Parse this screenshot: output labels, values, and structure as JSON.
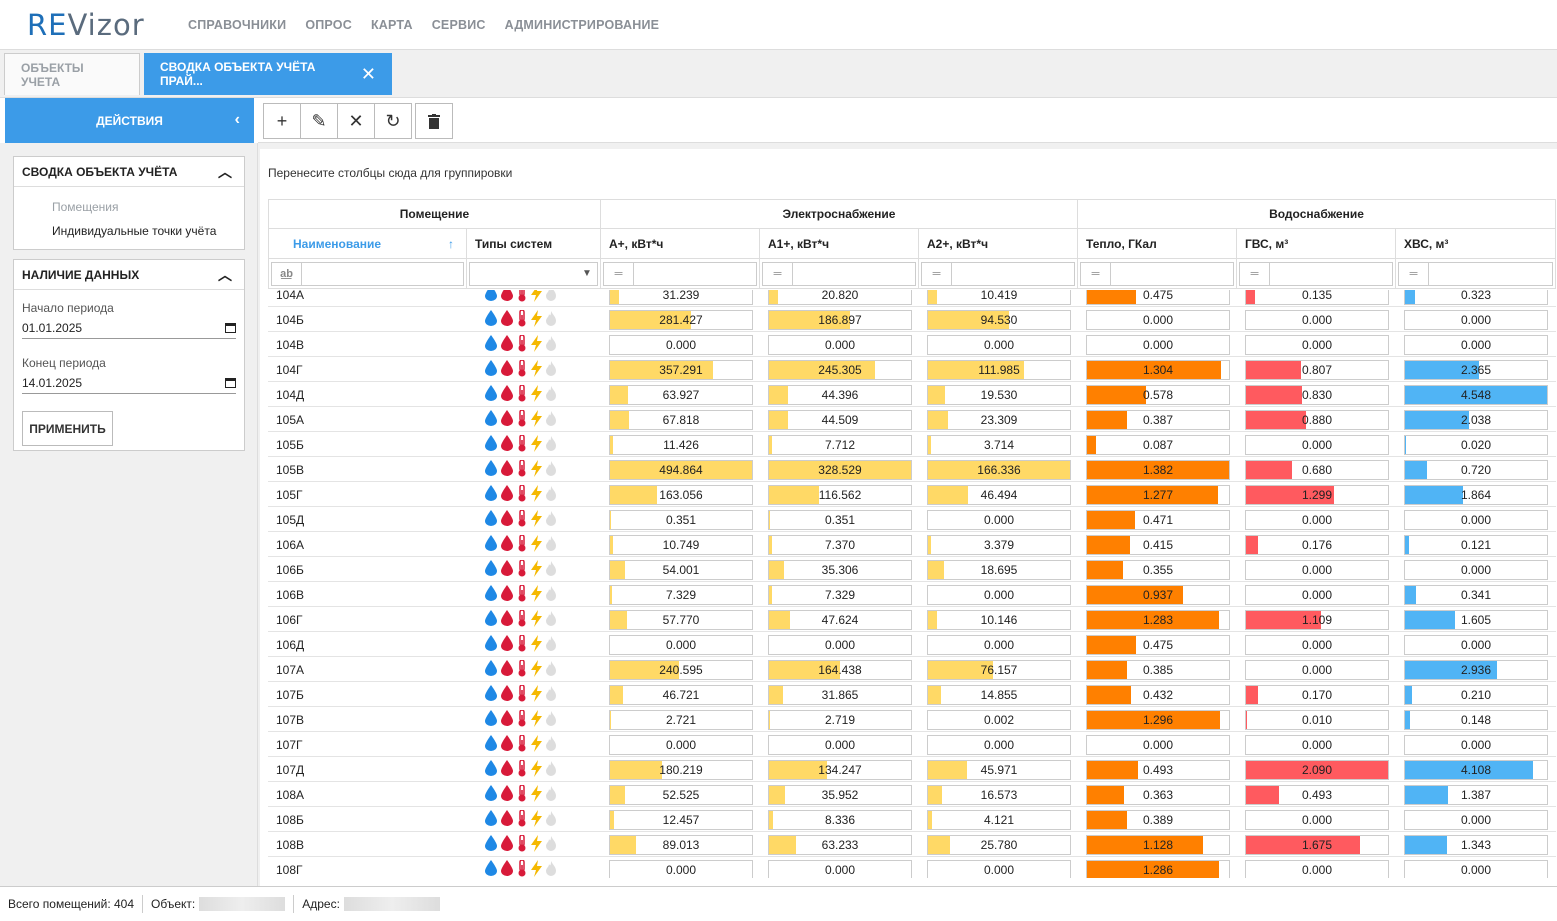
{
  "app": {
    "logo_re": "RE",
    "logo_vz": "Vizor"
  },
  "menu": [
    "СПРАВОЧНИКИ",
    "ОПРОС",
    "КАРТА",
    "СЕРВИС",
    "АДМИНИСТРИРОВАНИЕ"
  ],
  "tabs": {
    "tab1": "ОБЪЕКТЫ УЧЕТА",
    "tab2": "СВОДКА ОБЪЕКТА УЧЁТА ПРАЙ...",
    "close": "✕"
  },
  "left": {
    "actions": "ДЕЙСТВИЯ",
    "box1_title": "СВОДКА ОБЪЕКТА УЧЁТА",
    "link_rooms": "Помещения",
    "link_points": "Индивидуальные точки учёта",
    "box2_title": "НАЛИЧИЕ ДАННЫХ",
    "start_label": "Начало периода",
    "start_value": "01.01.2025",
    "end_label": "Конец периода",
    "end_value": "14.01.2025",
    "apply": "ПРИМЕНИТЬ"
  },
  "grid": {
    "group_hint": "Перенесите столбцы сюда для группировки",
    "groups": {
      "room": "Помещение",
      "elec": "Электроснабжение",
      "water": "Водоснабжение"
    },
    "columns": {
      "name": "Наименование",
      "types": "Типы систем",
      "a": "А+, кВт*ч",
      "a1": "А1+, кВт*ч",
      "a2": "А2+, кВт*ч",
      "heat": "Тепло, ГКал",
      "gvs": "ГВС, м³",
      "hvs": "ХВС, м³"
    },
    "colors": {
      "a": "#ffd966",
      "heat": "#ff8000",
      "gvs": "#ff5a5f",
      "hvs": "#50b4f5"
    },
    "max": {
      "a": 494.864,
      "a1": 328.529,
      "a2": 166.336,
      "heat": 1.382,
      "gvs": 2.09,
      "hvs": 4.548
    },
    "rows": [
      {
        "name": "104А",
        "a": "31.239",
        "a1": "20.820",
        "a2": "10.419",
        "heat": "0.475",
        "gvs": "0.135",
        "hvs": "0.323"
      },
      {
        "name": "104Б",
        "a": "281.427",
        "a1": "186.897",
        "a2": "94.530",
        "heat": "0.000",
        "gvs": "0.000",
        "hvs": "0.000"
      },
      {
        "name": "104В",
        "a": "0.000",
        "a1": "0.000",
        "a2": "0.000",
        "heat": "0.000",
        "gvs": "0.000",
        "hvs": "0.000"
      },
      {
        "name": "104Г",
        "a": "357.291",
        "a1": "245.305",
        "a2": "111.985",
        "heat": "1.304",
        "gvs": "0.807",
        "hvs": "2.365"
      },
      {
        "name": "104Д",
        "a": "63.927",
        "a1": "44.396",
        "a2": "19.530",
        "heat": "0.578",
        "gvs": "0.830",
        "hvs": "4.548"
      },
      {
        "name": "105А",
        "a": "67.818",
        "a1": "44.509",
        "a2": "23.309",
        "heat": "0.387",
        "gvs": "0.880",
        "hvs": "2.038"
      },
      {
        "name": "105Б",
        "a": "11.426",
        "a1": "7.712",
        "a2": "3.714",
        "heat": "0.087",
        "gvs": "0.000",
        "hvs": "0.020"
      },
      {
        "name": "105В",
        "a": "494.864",
        "a1": "328.529",
        "a2": "166.336",
        "heat": "1.382",
        "gvs": "0.680",
        "hvs": "0.720"
      },
      {
        "name": "105Г",
        "a": "163.056",
        "a1": "116.562",
        "a2": "46.494",
        "heat": "1.277",
        "gvs": "1.299",
        "hvs": "1.864"
      },
      {
        "name": "105Д",
        "a": "0.351",
        "a1": "0.351",
        "a2": "0.000",
        "heat": "0.471",
        "gvs": "0.000",
        "hvs": "0.000"
      },
      {
        "name": "106А",
        "a": "10.749",
        "a1": "7.370",
        "a2": "3.379",
        "heat": "0.415",
        "gvs": "0.176",
        "hvs": "0.121"
      },
      {
        "name": "106Б",
        "a": "54.001",
        "a1": "35.306",
        "a2": "18.695",
        "heat": "0.355",
        "gvs": "0.000",
        "hvs": "0.000"
      },
      {
        "name": "106В",
        "a": "7.329",
        "a1": "7.329",
        "a2": "0.000",
        "heat": "0.937",
        "gvs": "0.000",
        "hvs": "0.341"
      },
      {
        "name": "106Г",
        "a": "57.770",
        "a1": "47.624",
        "a2": "10.146",
        "heat": "1.283",
        "gvs": "1.109",
        "hvs": "1.605"
      },
      {
        "name": "106Д",
        "a": "0.000",
        "a1": "0.000",
        "a2": "0.000",
        "heat": "0.475",
        "gvs": "0.000",
        "hvs": "0.000"
      },
      {
        "name": "107А",
        "a": "240.595",
        "a1": "164.438",
        "a2": "76.157",
        "heat": "0.385",
        "gvs": "0.000",
        "hvs": "2.936"
      },
      {
        "name": "107Б",
        "a": "46.721",
        "a1": "31.865",
        "a2": "14.855",
        "heat": "0.432",
        "gvs": "0.170",
        "hvs": "0.210"
      },
      {
        "name": "107В",
        "a": "2.721",
        "a1": "2.719",
        "a2": "0.002",
        "heat": "1.296",
        "gvs": "0.010",
        "hvs": "0.148"
      },
      {
        "name": "107Г",
        "a": "0.000",
        "a1": "0.000",
        "a2": "0.000",
        "heat": "0.000",
        "gvs": "0.000",
        "hvs": "0.000"
      },
      {
        "name": "107Д",
        "a": "180.219",
        "a1": "134.247",
        "a2": "45.971",
        "heat": "0.493",
        "gvs": "2.090",
        "hvs": "4.108"
      },
      {
        "name": "108А",
        "a": "52.525",
        "a1": "35.952",
        "a2": "16.573",
        "heat": "0.363",
        "gvs": "0.493",
        "hvs": "1.387"
      },
      {
        "name": "108Б",
        "a": "12.457",
        "a1": "8.336",
        "a2": "4.121",
        "heat": "0.389",
        "gvs": "0.000",
        "hvs": "0.000"
      },
      {
        "name": "108В",
        "a": "89.013",
        "a1": "63.233",
        "a2": "25.780",
        "heat": "1.128",
        "gvs": "1.675",
        "hvs": "1.343"
      },
      {
        "name": "108Г",
        "a": "0.000",
        "a1": "0.000",
        "a2": "0.000",
        "heat": "1.286",
        "gvs": "0.000",
        "hvs": "0.000"
      }
    ]
  },
  "status": {
    "total": "Всего помещений: 404",
    "object": "Объект:",
    "address": "Адрес:"
  }
}
